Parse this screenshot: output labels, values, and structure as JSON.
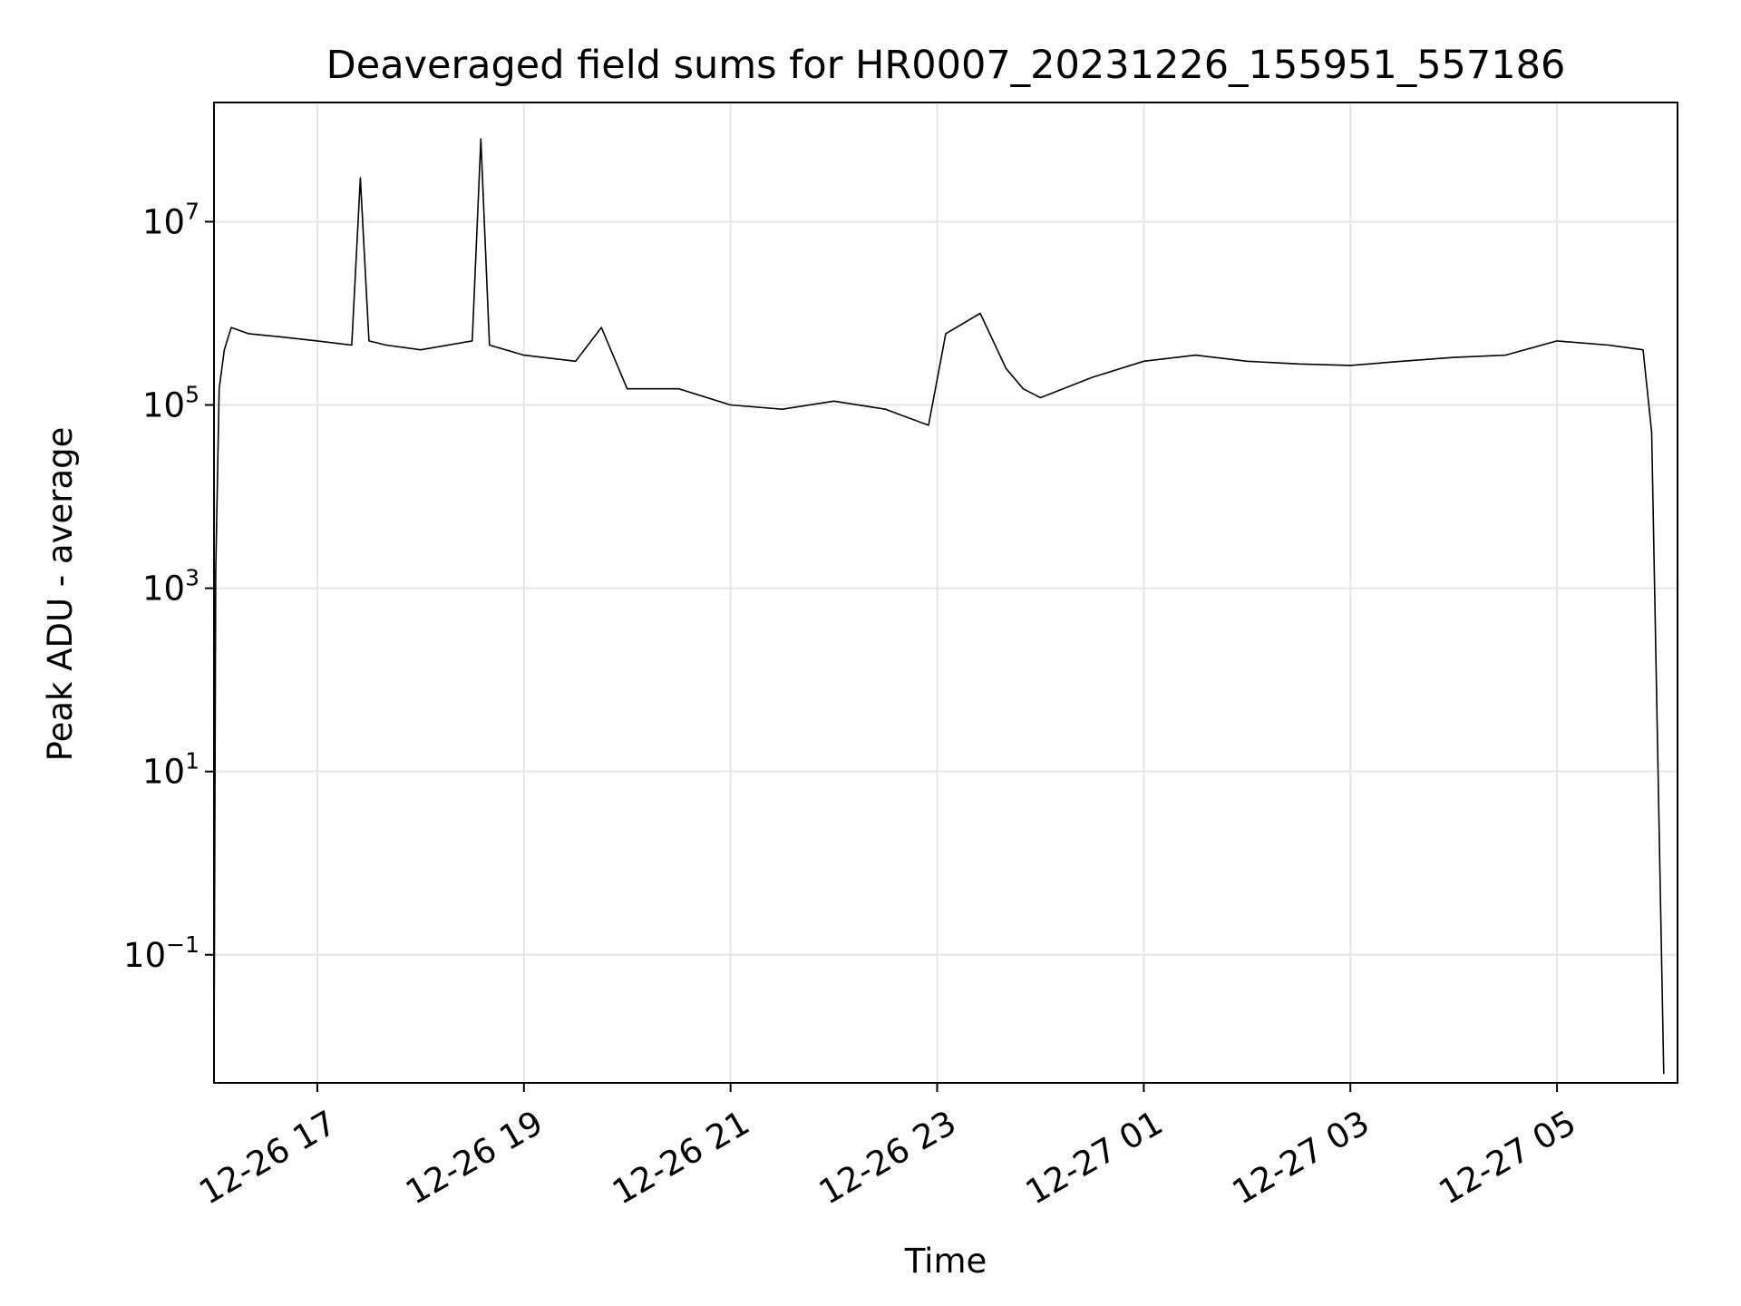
{
  "chart_data": {
    "type": "line",
    "title": "Deaveraged field sums for HR0007_20231226_155951_557186",
    "xlabel": "Time",
    "ylabel": "Peak ADU - average",
    "y_scale": "log",
    "ylim": [
      0.004,
      200000000
    ],
    "xlim": [
      "2023-12-26 16:00",
      "2023-12-27 06:10"
    ],
    "grid": true,
    "legend": "none",
    "line_color": "#000000",
    "x_ticks": [
      "12-26 17",
      "12-26 19",
      "12-26 21",
      "12-26 23",
      "12-27 01",
      "12-27 03",
      "12-27 05"
    ],
    "y_ticks": [
      {
        "value": 0.1,
        "base": "10",
        "exp": "−1"
      },
      {
        "value": 10,
        "base": "10",
        "exp": "1"
      },
      {
        "value": 1000,
        "base": "10",
        "exp": "3"
      },
      {
        "value": 100000,
        "base": "10",
        "exp": "5"
      },
      {
        "value": 10000000,
        "base": "10",
        "exp": "7"
      }
    ],
    "series": [
      {
        "x": [
          "2023-12-26 16:00",
          "2023-12-26 16:01",
          "2023-12-26 16:03",
          "2023-12-26 16:06",
          "2023-12-26 16:10",
          "2023-12-26 16:20",
          "2023-12-26 16:40",
          "2023-12-26 17:00",
          "2023-12-26 17:20",
          "2023-12-26 17:25",
          "2023-12-26 17:30",
          "2023-12-26 17:40",
          "2023-12-26 18:00",
          "2023-12-26 18:30",
          "2023-12-26 18:35",
          "2023-12-26 18:40",
          "2023-12-26 19:00",
          "2023-12-26 19:30",
          "2023-12-26 19:45",
          "2023-12-26 20:00",
          "2023-12-26 20:30",
          "2023-12-26 21:00",
          "2023-12-26 21:30",
          "2023-12-26 22:00",
          "2023-12-26 22:30",
          "2023-12-26 22:55",
          "2023-12-26 23:05",
          "2023-12-26 23:25",
          "2023-12-26 23:40",
          "2023-12-26 23:50",
          "2023-12-27 00:00",
          "2023-12-27 00:30",
          "2023-12-27 01:00",
          "2023-12-27 01:30",
          "2023-12-27 02:00",
          "2023-12-27 02:30",
          "2023-12-27 03:00",
          "2023-12-27 03:30",
          "2023-12-27 04:00",
          "2023-12-27 04:30",
          "2023-12-27 05:00",
          "2023-12-27 05:30",
          "2023-12-27 05:50",
          "2023-12-27 05:55",
          "2023-12-27 06:00",
          "2023-12-27 06:02"
        ],
        "y": [
          0.005,
          1500,
          150000,
          400000,
          700000,
          600000,
          550000,
          500000,
          450000,
          30000000,
          500000,
          450000,
          400000,
          500000,
          80000000,
          450000,
          350000,
          300000,
          700000,
          150000,
          150000,
          100000,
          90000,
          110000,
          90000,
          60000,
          600000,
          1000000,
          250000,
          150000,
          120000,
          200000,
          300000,
          350000,
          300000,
          280000,
          270000,
          300000,
          330000,
          350000,
          500000,
          450000,
          400000,
          50000,
          0.5,
          0.005
        ]
      }
    ]
  }
}
